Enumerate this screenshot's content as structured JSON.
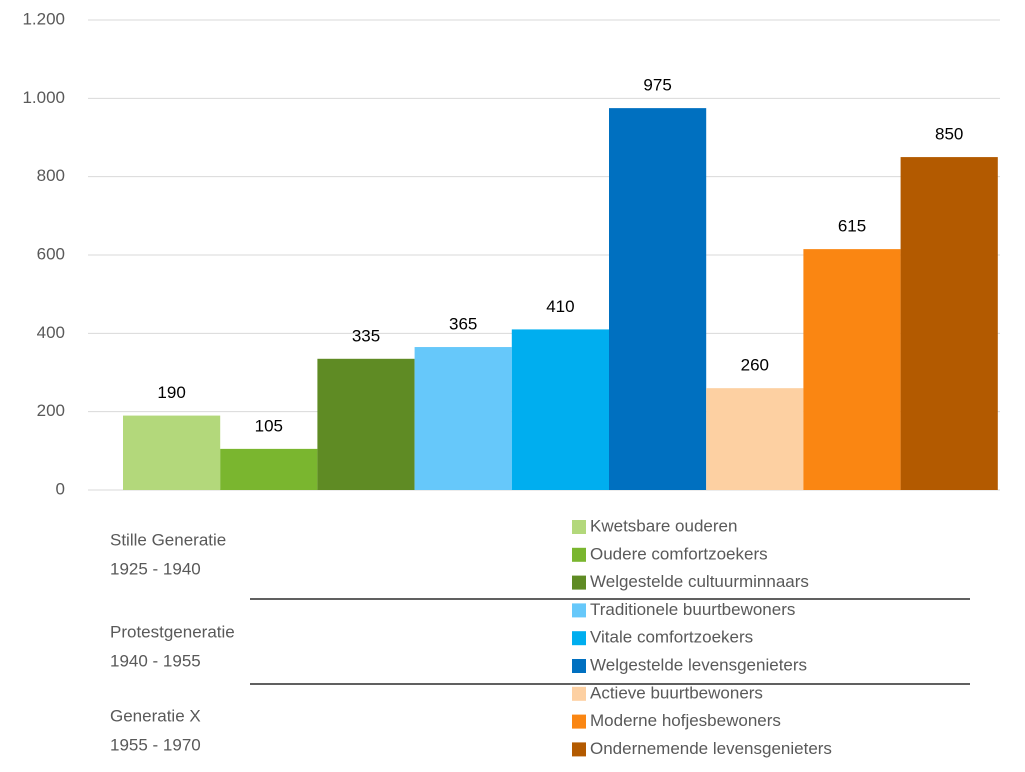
{
  "chart_data": {
    "type": "bar",
    "series": [
      {
        "name": "Kwetsbare ouderen",
        "color": "#b3d87b",
        "values": [
          190
        ]
      },
      {
        "name": "Oudere comfortzoekers",
        "color": "#7ab62f",
        "values": [
          105
        ]
      },
      {
        "name": "Welgestelde cultuurminnaars",
        "color": "#5f8b24",
        "values": [
          335
        ]
      },
      {
        "name": "Traditionele buurtbewoners",
        "color": "#66c8fa",
        "values": [
          365
        ]
      },
      {
        "name": "Vitale comfortzoekers",
        "color": "#00aeef",
        "values": [
          410
        ]
      },
      {
        "name": "Welgestelde levensgenieters",
        "color": "#0070c0",
        "values": [
          975
        ]
      },
      {
        "name": "Actieve buurtbewoners",
        "color": "#fdd0a2",
        "values": [
          260
        ]
      },
      {
        "name": "Moderne hofjesbewoners",
        "color": "#fa8612",
        "values": [
          615
        ]
      },
      {
        "name": "Ondernemende levensgenieters",
        "color": "#b35a00",
        "values": [
          850
        ]
      }
    ],
    "groups": [
      {
        "name": "Stille Generatie",
        "period": "1925 - 1940"
      },
      {
        "name": "Protestgeneratie",
        "period": "1940 - 1955"
      },
      {
        "name": "Generatie X",
        "period": "1955 - 1970"
      }
    ],
    "ylim": [
      0,
      1200
    ],
    "yticks": [
      0,
      200,
      400,
      600,
      800,
      {
        "value": 1000,
        "label": "1.000"
      },
      {
        "value": 1200,
        "label": "1.200"
      }
    ],
    "grid": true,
    "legend": "bottom"
  }
}
